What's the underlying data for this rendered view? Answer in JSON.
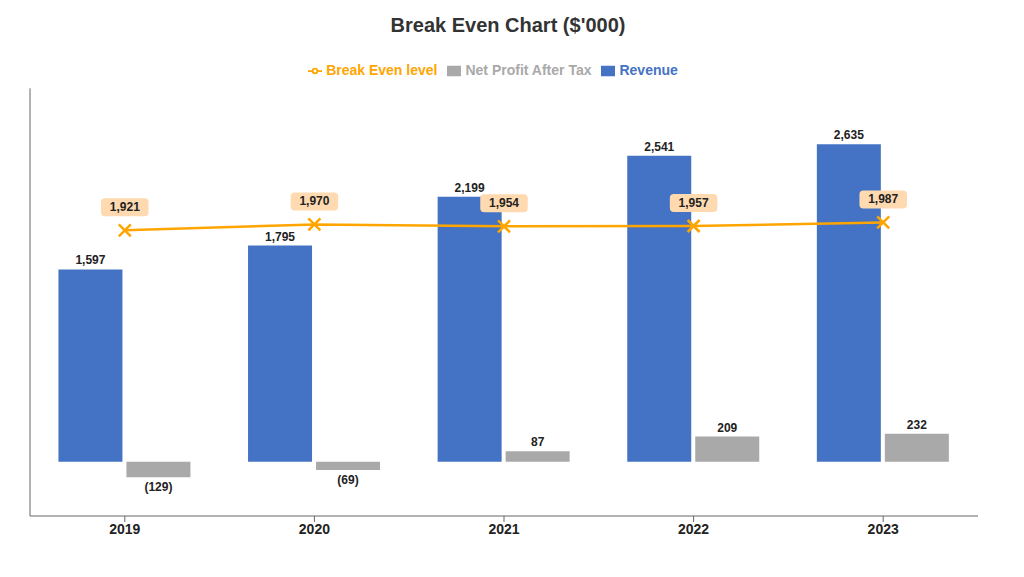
{
  "chart_data": {
    "type": "bar",
    "title": "Break Even Chart ($'000)",
    "categories": [
      "2019",
      "2020",
      "2021",
      "2022",
      "2023"
    ],
    "series": [
      {
        "name": "Revenue",
        "type": "bar",
        "color": "#4472C4",
        "values": [
          1597,
          1795,
          2199,
          2541,
          2635
        ],
        "value_labels": [
          "1,597",
          "1,795",
          "2,199",
          "2,541",
          "2,635"
        ]
      },
      {
        "name": "Net Profit After Tax",
        "type": "bar",
        "color": "#A9A9A9",
        "values": [
          -129,
          -69,
          87,
          209,
          232
        ],
        "value_labels": [
          "(129)",
          "(69)",
          "87",
          "209",
          "232"
        ]
      },
      {
        "name": "Break Even level",
        "type": "line",
        "color": "#FFA500",
        "marker": "x",
        "values": [
          1921,
          1970,
          1954,
          1957,
          1987
        ],
        "value_labels": [
          "1,921",
          "1,970",
          "1,954",
          "1,957",
          "1,987"
        ]
      }
    ],
    "ylim": [
      -450,
      3100
    ],
    "grid": false,
    "legend": "top",
    "data_labels": true,
    "tick_labels": "x"
  }
}
